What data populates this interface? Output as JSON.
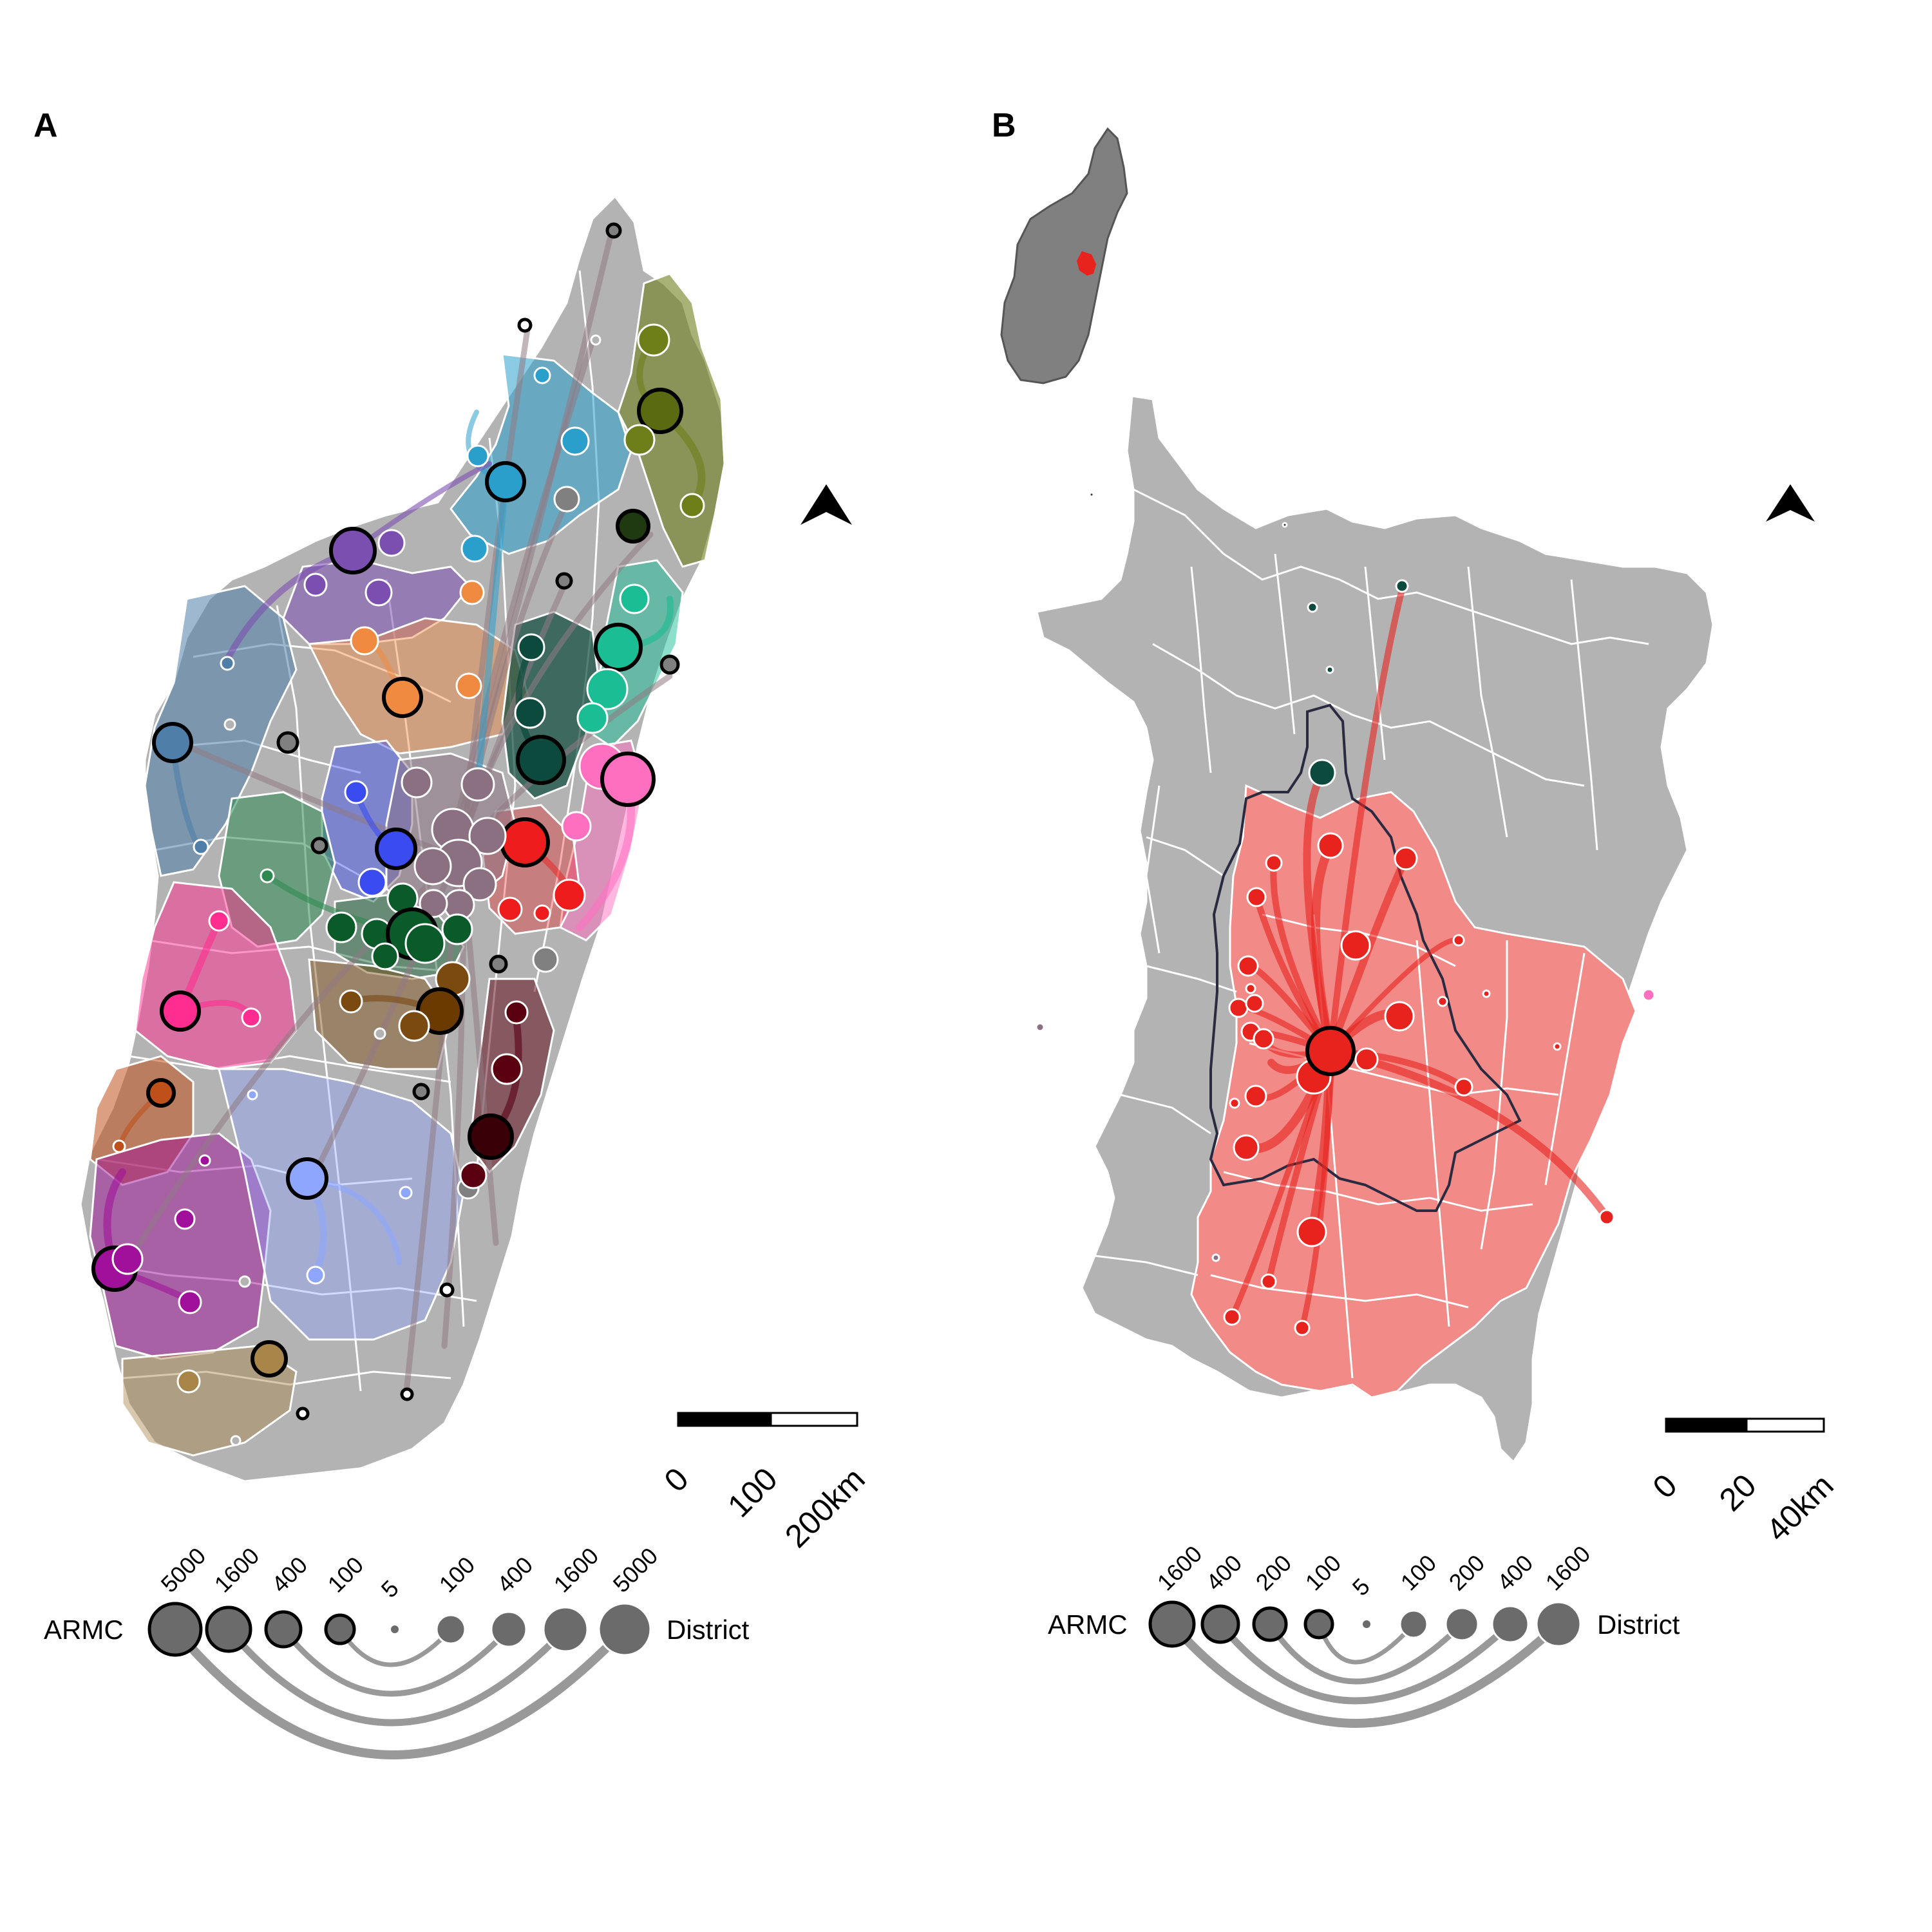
{
  "panels": [
    {
      "letter": "A",
      "scale_bar": {
        "ticks": [
          "0",
          "100",
          "200km"
        ]
      },
      "legend": {
        "left_label": "ARMC",
        "right_label": "District",
        "armc_values": [
          "5000",
          "1600",
          "400",
          "100"
        ],
        "center_value": "5",
        "district_values": [
          "100",
          "400",
          "1600",
          "5000"
        ]
      },
      "colors": {
        "land": "#b3b3b3",
        "border": "#ffffff",
        "flow_main": "#8f7a84"
      },
      "regions": [
        {
          "name": "olive",
          "color": "#6e7f1a"
        },
        {
          "name": "sky-blue",
          "color": "#2b9fcc"
        },
        {
          "name": "purple",
          "color": "#7b4fb0"
        },
        {
          "name": "orange",
          "color": "#f08a40"
        },
        {
          "name": "steel-blue",
          "color": "#4f7fa8"
        },
        {
          "name": "teal",
          "color": "#1bbd95"
        },
        {
          "name": "dark-teal",
          "color": "#0b4a3c"
        },
        {
          "name": "periwinkle",
          "color": "#3a4cf0"
        },
        {
          "name": "sea-green",
          "color": "#2e8a50"
        },
        {
          "name": "pink",
          "color": "#ff6fc0"
        },
        {
          "name": "red",
          "color": "#ee1c1c"
        },
        {
          "name": "mauve",
          "color": "#8a7080"
        },
        {
          "name": "magenta-rose",
          "color": "#ff2d90"
        },
        {
          "name": "dark-green",
          "color": "#0a5a2a"
        },
        {
          "name": "brown",
          "color": "#7a4a10"
        },
        {
          "name": "maroon",
          "color": "#5a0010"
        },
        {
          "name": "rust",
          "color": "#c0501a"
        },
        {
          "name": "magenta",
          "color": "#a0109a"
        },
        {
          "name": "light-blue",
          "color": "#8fa6ff"
        },
        {
          "name": "tan",
          "color": "#a8864a"
        }
      ]
    },
    {
      "letter": "B",
      "scale_bar": {
        "ticks": [
          "0",
          "20",
          "40km"
        ]
      },
      "legend": {
        "left_label": "ARMC",
        "right_label": "District",
        "armc_values": [
          "1600",
          "400",
          "200",
          "100"
        ],
        "center_value": "5",
        "district_values": [
          "100",
          "200",
          "400",
          "1600"
        ]
      },
      "colors": {
        "land": "#b3b3b3",
        "highlight": "#f28a88",
        "flow": "#e8231e",
        "inset_land": "#808080"
      }
    }
  ]
}
